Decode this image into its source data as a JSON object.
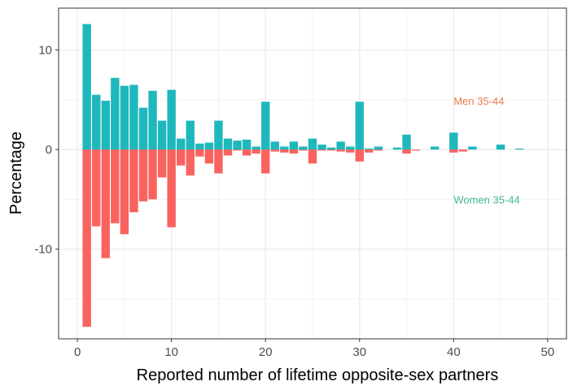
{
  "chart_data": {
    "type": "bar",
    "xlabel": "Reported number of lifetime opposite-sex partners",
    "ylabel": "Percentage",
    "xlim": [
      -2,
      52
    ],
    "ylim": [
      -19,
      14.2
    ],
    "x_ticks": [
      0,
      10,
      20,
      30,
      40,
      50
    ],
    "y_ticks": [
      -10,
      0,
      10
    ],
    "y_tick_labels": [
      "-10",
      "0",
      "10"
    ],
    "grid": true,
    "colors": {
      "positive": "#1eb8bc",
      "negative": "#f8635f",
      "grid": "#ebebeb",
      "panel_border": "#333333"
    },
    "annotations": [
      {
        "text": "Men 35-44",
        "x": 40,
        "y": 4.8,
        "color": "#f07a4a"
      },
      {
        "text": "Women 35-44",
        "x": 40,
        "y": -5.1,
        "color": "#3fb89a"
      }
    ],
    "series": [
      {
        "sign": "positive",
        "x": [
          1,
          2,
          3,
          4,
          5,
          6,
          7,
          8,
          9,
          10,
          11,
          12,
          13,
          14,
          15,
          16,
          17,
          18,
          19,
          20,
          21,
          22,
          23,
          24,
          25,
          26,
          27,
          28,
          29,
          30,
          31,
          32,
          34,
          35,
          38,
          40,
          42,
          45,
          47
        ],
        "values": [
          12.6,
          5.5,
          4.9,
          7.2,
          6.4,
          6.5,
          4.2,
          5.9,
          2.9,
          6.0,
          1.1,
          2.9,
          0.6,
          0.7,
          2.9,
          1.1,
          0.9,
          1.0,
          0.3,
          4.8,
          0.8,
          0.3,
          0.8,
          0.3,
          1.1,
          0.5,
          0.2,
          0.8,
          0.3,
          4.8,
          0.1,
          0.3,
          0.2,
          1.5,
          0.3,
          1.7,
          0.3,
          0.5,
          0.1
        ]
      },
      {
        "sign": "negative",
        "x": [
          1,
          2,
          3,
          4,
          5,
          6,
          7,
          8,
          9,
          10,
          11,
          12,
          13,
          14,
          15,
          16,
          17,
          18,
          19,
          20,
          21,
          22,
          23,
          24,
          25,
          26,
          27,
          28,
          29,
          30,
          31,
          32,
          35,
          36,
          40,
          41
        ],
        "values": [
          -17.8,
          -7.7,
          -10.9,
          -7.4,
          -8.5,
          -6.3,
          -5.2,
          -5.0,
          -2.8,
          -7.8,
          -1.6,
          -2.6,
          -0.7,
          -1.4,
          -2.4,
          -0.6,
          -0.1,
          -0.6,
          -0.4,
          -2.4,
          -0.2,
          -0.3,
          -0.4,
          -0.1,
          -1.4,
          -0.1,
          -0.1,
          -0.2,
          -0.3,
          -1.2,
          -0.3,
          -0.1,
          -0.4,
          -0.1,
          -0.3,
          -0.2
        ]
      }
    ]
  }
}
